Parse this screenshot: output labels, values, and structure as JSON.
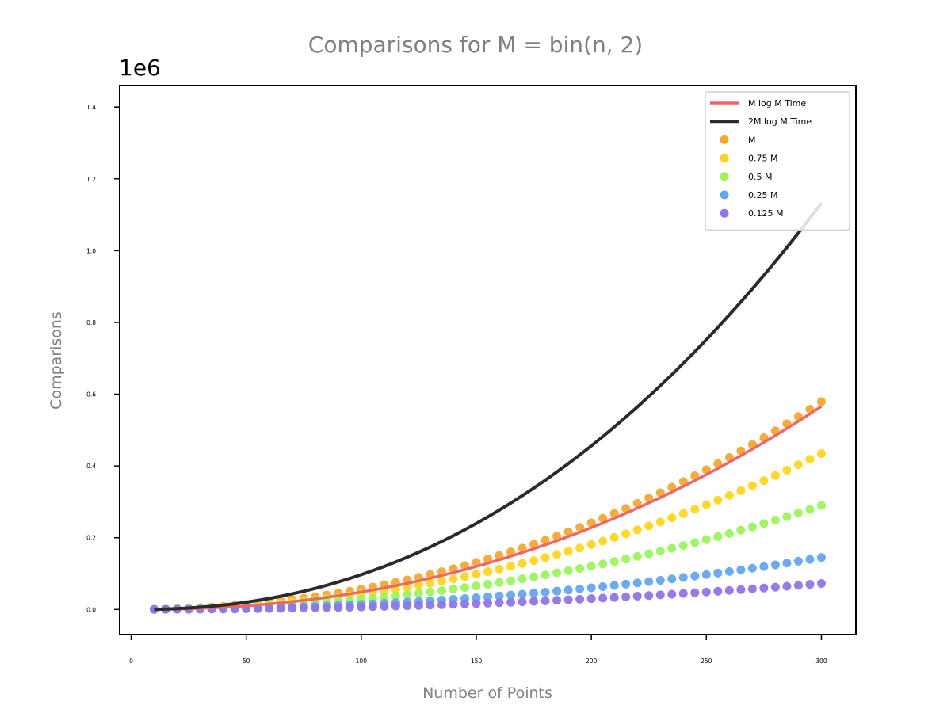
{
  "chart_data": {
    "type": "scatter",
    "title": "Comparisons for M = bin(n, 2)",
    "xlabel": "Number of Points",
    "ylabel": "Comparisons",
    "y_offset_label": "1e6",
    "xlim": [
      -5,
      315
    ],
    "ylim": [
      -70000,
      1460000
    ],
    "x_ticks": [
      0,
      50,
      100,
      150,
      200,
      250,
      300
    ],
    "y_ticks": [
      0,
      200000,
      400000,
      600000,
      800000,
      1000000,
      1200000,
      1400000
    ],
    "y_tick_labels": [
      "0.0",
      "0.2",
      "0.4",
      "0.6",
      "0.8",
      "1.0",
      "1.2",
      "1.4"
    ],
    "grid": false,
    "legend_position": "top-right",
    "x": [
      10,
      15,
      20,
      25,
      30,
      35,
      40,
      45,
      50,
      55,
      60,
      65,
      70,
      75,
      80,
      85,
      90,
      95,
      100,
      105,
      110,
      115,
      120,
      125,
      130,
      135,
      140,
      145,
      150,
      155,
      160,
      165,
      170,
      175,
      180,
      185,
      190,
      195,
      200,
      205,
      210,
      215,
      220,
      225,
      230,
      235,
      240,
      245,
      250,
      255,
      260,
      265,
      270,
      275,
      280,
      285,
      290,
      295,
      300
    ],
    "lines": [
      {
        "name": "M log M Time",
        "color": "#f06565",
        "width": 3.5,
        "values": [
          234,
          610,
          1200,
          2028,
          3107,
          4447,
          6058,
          7947,
          10120,
          12580,
          15340,
          18390,
          21750,
          25410,
          29390,
          33690,
          38300,
          43230,
          48490,
          54070,
          59990,
          66250,
          72850,
          79790,
          87090,
          94740,
          102750,
          111120,
          119850,
          128960,
          138430,
          148280,
          158510,
          169120,
          180110,
          191500,
          203270,
          215440,
          228000,
          240960,
          254320,
          268090,
          282260,
          296840,
          311830,
          327240,
          343060,
          359300,
          375960,
          393040,
          410540,
          428470,
          446830,
          465620,
          484850,
          504510,
          524610,
          545150,
          566130
        ]
      },
      {
        "name": "2M log M Time",
        "color": "#2b2b2b",
        "width": 4,
        "values": [
          468,
          1220,
          2400,
          4056,
          6214,
          8894,
          12116,
          15894,
          20240,
          25160,
          30680,
          36780,
          43500,
          50820,
          58780,
          67380,
          76600,
          86460,
          96980,
          108140,
          119980,
          132500,
          145700,
          159580,
          174180,
          189480,
          205500,
          222240,
          239700,
          257920,
          276860,
          296560,
          317020,
          338240,
          360220,
          383000,
          406540,
          430880,
          456000,
          481920,
          508640,
          536180,
          564520,
          593680,
          623660,
          654480,
          686120,
          718600,
          751920,
          786080,
          821080,
          856940,
          893660,
          931240,
          969700,
          1009020,
          1049220,
          1090300,
          1132260
        ]
      }
    ],
    "series": [
      {
        "name": "M",
        "color": "#f7a82f",
        "values": [
          500,
          1200,
          2200,
          3500,
          5000,
          6800,
          8900,
          11300,
          13900,
          16800,
          20000,
          23500,
          27300,
          31400,
          35800,
          40500,
          45500,
          50800,
          56500,
          62400,
          68700,
          75300,
          82300,
          89600,
          97200,
          105200,
          113500,
          122200,
          131200,
          140600,
          150300,
          160400,
          170800,
          181600,
          192800,
          204300,
          216200,
          228500,
          241200,
          254200,
          267600,
          281400,
          295600,
          310200,
          325200,
          340600,
          356400,
          372600,
          389200,
          406200,
          423700,
          441600,
          459900,
          478700,
          497900,
          517500,
          537600,
          558100,
          579100
        ]
      },
      {
        "name": "0.75 M",
        "color": "#ffd61f",
        "values": [
          400,
          900,
          1700,
          2600,
          3800,
          5100,
          6700,
          8500,
          10400,
          12600,
          15000,
          17600,
          20500,
          23500,
          26800,
          30300,
          34100,
          38100,
          42400,
          46800,
          51500,
          56500,
          61700,
          67200,
          72900,
          78900,
          85100,
          91700,
          98400,
          105500,
          112700,
          120300,
          128100,
          136200,
          144600,
          153200,
          162100,
          171300,
          180800,
          190600,
          200700,
          211000,
          221700,
          232700,
          243900,
          255400,
          267300,
          279400,
          291900,
          304700,
          317800,
          331200,
          344900,
          359000,
          373400,
          388100,
          403200,
          418600,
          434300
        ]
      },
      {
        "name": "0.5 M",
        "color": "#9af55a",
        "values": [
          300,
          600,
          1100,
          1800,
          2500,
          3400,
          4500,
          5600,
          7000,
          8400,
          10000,
          11700,
          13600,
          15700,
          17900,
          20200,
          22700,
          25400,
          28200,
          31200,
          34400,
          37700,
          41200,
          44800,
          48600,
          52600,
          56800,
          61100,
          65600,
          70300,
          75200,
          80200,
          85400,
          90800,
          96400,
          102200,
          108100,
          114300,
          120600,
          127100,
          133800,
          140700,
          147800,
          155100,
          162600,
          170300,
          178200,
          186300,
          194600,
          203100,
          211800,
          220800,
          229900,
          239300,
          248900,
          258700,
          268800,
          279000,
          289500
        ]
      },
      {
        "name": "0.25 M",
        "color": "#62a6f2",
        "values": [
          100,
          300,
          600,
          900,
          1300,
          1700,
          2200,
          2800,
          3500,
          4200,
          5000,
          5900,
          6800,
          7800,
          8900,
          10100,
          11400,
          12700,
          14100,
          15600,
          17200,
          18900,
          20600,
          22400,
          24300,
          26300,
          28400,
          30500,
          32800,
          35100,
          37600,
          40100,
          42700,
          45400,
          48200,
          51100,
          54100,
          57100,
          60300,
          63600,
          66900,
          70400,
          73900,
          77600,
          81300,
          85200,
          89100,
          93100,
          97300,
          101500,
          105900,
          110400,
          115000,
          119600,
          124400,
          129300,
          134400,
          139500,
          144800
        ]
      },
      {
        "name": "0.125 M",
        "color": "#9175e8",
        "values": [
          100,
          100,
          300,
          400,
          600,
          900,
          1100,
          1400,
          1700,
          2100,
          2500,
          2900,
          3400,
          3900,
          4500,
          5100,
          5700,
          6300,
          7100,
          7800,
          8600,
          9400,
          10300,
          11200,
          12200,
          13200,
          14200,
          15300,
          16400,
          17600,
          18800,
          20000,
          21300,
          22700,
          24100,
          25500,
          27000,
          28600,
          30200,
          31800,
          33500,
          35200,
          37000,
          38800,
          40700,
          42600,
          44600,
          46600,
          48600,
          50800,
          53000,
          55200,
          57500,
          59800,
          62200,
          64700,
          67200,
          69800,
          72400
        ]
      }
    ]
  }
}
